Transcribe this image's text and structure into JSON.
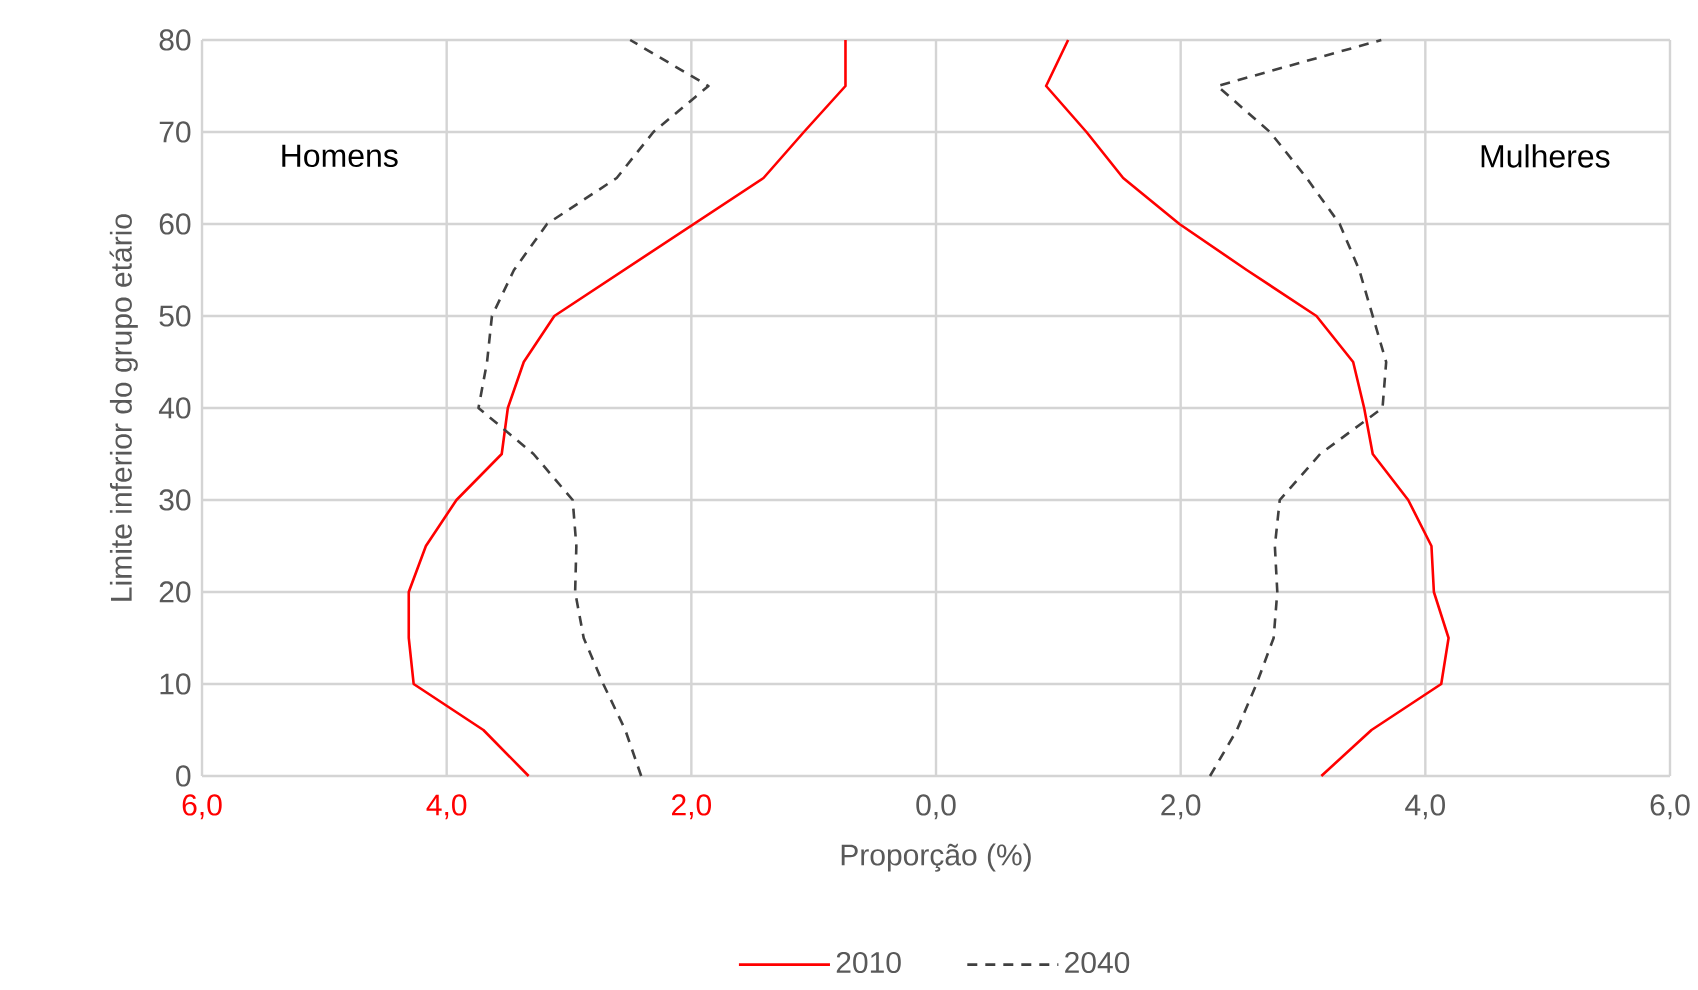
{
  "chart_data": {
    "type": "line",
    "xlabel": "Proporção (%)",
    "ylabel": "Limite inferior do grupo etário",
    "annotations": [
      "Homens",
      "Mulheres"
    ],
    "xlim": [
      -6,
      6
    ],
    "xticks": [
      {
        "value": -6,
        "label": "6,0"
      },
      {
        "value": -4,
        "label": "4,0"
      },
      {
        "value": -2,
        "label": "2,0"
      },
      {
        "value": 0,
        "label": "0,0"
      },
      {
        "value": 2,
        "label": "2,0"
      },
      {
        "value": 4,
        "label": "4,0"
      },
      {
        "value": 6,
        "label": "6,0"
      }
    ],
    "ylim": [
      0,
      80
    ],
    "yticks": [
      0,
      10,
      20,
      30,
      40,
      50,
      60,
      70,
      80
    ],
    "grid": true,
    "legend": "bottom",
    "series": [
      {
        "name": "2010",
        "color": "#ff0000",
        "line_style": "solid",
        "x": [
          -3.33,
          -3.7,
          -4.27,
          -4.31,
          -4.31,
          -4.17,
          -3.92,
          -3.55,
          -3.5,
          -3.37,
          -3.12,
          -2.55,
          -1.98,
          -1.41,
          -1.08,
          -0.74,
          -0.74
        ],
        "values": [
          0,
          5,
          10,
          15,
          20,
          25,
          30,
          35,
          40,
          45,
          50,
          55,
          60,
          65,
          70,
          75,
          80
        ]
      },
      {
        "name": "2040",
        "color": "#404040",
        "line_style": "dashed",
        "x": [
          -2.41,
          -2.54,
          -2.72,
          -2.88,
          -2.95,
          -2.94,
          -2.97,
          -3.29,
          -3.74,
          -3.67,
          -3.63,
          -3.45,
          -3.18,
          -2.61,
          -2.31,
          -1.86,
          -2.5
        ],
        "values": [
          0,
          5,
          10,
          15,
          20,
          25,
          30,
          35,
          40,
          45,
          50,
          55,
          60,
          65,
          70,
          75,
          80
        ]
      },
      {
        "color": "#ff0000",
        "line_style": "solid",
        "x": [
          3.15,
          3.56,
          4.13,
          4.19,
          4.07,
          4.05,
          3.86,
          3.57,
          3.5,
          3.41,
          3.11,
          2.54,
          1.99,
          1.53,
          1.23,
          0.9,
          1.08
        ],
        "values": [
          0,
          5,
          10,
          15,
          20,
          25,
          30,
          35,
          40,
          45,
          50,
          55,
          60,
          65,
          70,
          75,
          80
        ]
      },
      {
        "color": "#404040",
        "line_style": "dashed",
        "x": [
          2.24,
          2.46,
          2.62,
          2.76,
          2.79,
          2.77,
          2.81,
          3.14,
          3.65,
          3.68,
          3.57,
          3.46,
          3.3,
          3.03,
          2.73,
          2.3,
          3.64
        ],
        "values": [
          0,
          5,
          10,
          15,
          20,
          25,
          30,
          35,
          40,
          45,
          50,
          55,
          60,
          65,
          70,
          75,
          80
        ]
      }
    ]
  }
}
